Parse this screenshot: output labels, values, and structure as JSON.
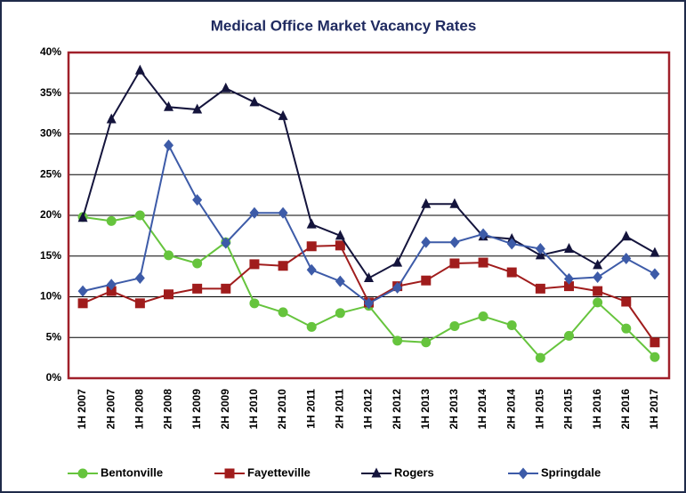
{
  "chart_data": {
    "type": "line",
    "title": "Medical Office Market Vacancy Rates",
    "categories": [
      "1H 2007",
      "2H 2007",
      "1H 2008",
      "2H 2008",
      "1H 2009",
      "2H 2009",
      "1H 2010",
      "2H 2010",
      "1H 2011",
      "2H 2011",
      "1H 2012",
      "2H 2012",
      "1H 2013",
      "2H 2013",
      "1H 2014",
      "2H 2014",
      "1H 2015",
      "2H 2015",
      "1H 2016",
      "2H 2016",
      "1H 2017"
    ],
    "series": [
      {
        "name": "Bentonville",
        "color": "#66c43d",
        "marker": "circle",
        "values": [
          19.8,
          19.3,
          20.0,
          15.1,
          14.1,
          16.7,
          9.2,
          8.1,
          6.3,
          8.0,
          8.9,
          4.6,
          4.4,
          6.4,
          7.6,
          6.5,
          2.5,
          5.2,
          9.3,
          6.1,
          2.6
        ]
      },
      {
        "name": "Fayetteville",
        "color": "#a01c1c",
        "marker": "square",
        "values": [
          9.2,
          10.7,
          9.2,
          10.3,
          11.0,
          11.0,
          14.0,
          13.8,
          16.2,
          16.3,
          9.3,
          11.3,
          12.0,
          14.1,
          14.2,
          13.0,
          11.0,
          11.3,
          10.7,
          9.4,
          4.4
        ]
      },
      {
        "name": "Rogers",
        "color": "#14143c",
        "marker": "triangle",
        "values": [
          19.7,
          31.8,
          37.8,
          33.3,
          33.0,
          35.6,
          33.9,
          32.2,
          18.9,
          17.5,
          12.3,
          14.2,
          21.4,
          21.4,
          17.4,
          17.1,
          15.1,
          15.9,
          13.9,
          17.4,
          15.4
        ]
      },
      {
        "name": "Springdale",
        "color": "#3d5ba8",
        "marker": "diamond",
        "values": [
          10.7,
          11.5,
          12.3,
          28.6,
          21.9,
          16.6,
          20.3,
          20.3,
          13.3,
          11.9,
          9.2,
          11.1,
          16.7,
          16.7,
          17.7,
          16.5,
          15.9,
          12.2,
          12.4,
          14.7,
          12.8
        ]
      }
    ],
    "ylim": [
      0,
      40
    ],
    "yticks": [
      {
        "value": 0,
        "label": "0%"
      },
      {
        "value": 5,
        "label": "5%"
      },
      {
        "value": 10,
        "label": "10%"
      },
      {
        "value": 15,
        "label": "15%"
      },
      {
        "value": 20,
        "label": "20%"
      },
      {
        "value": 25,
        "label": "25%"
      },
      {
        "value": 30,
        "label": "30%"
      },
      {
        "value": 35,
        "label": "35%"
      },
      {
        "value": 40,
        "label": "40%"
      }
    ],
    "grid": true,
    "legend": "bottom"
  }
}
